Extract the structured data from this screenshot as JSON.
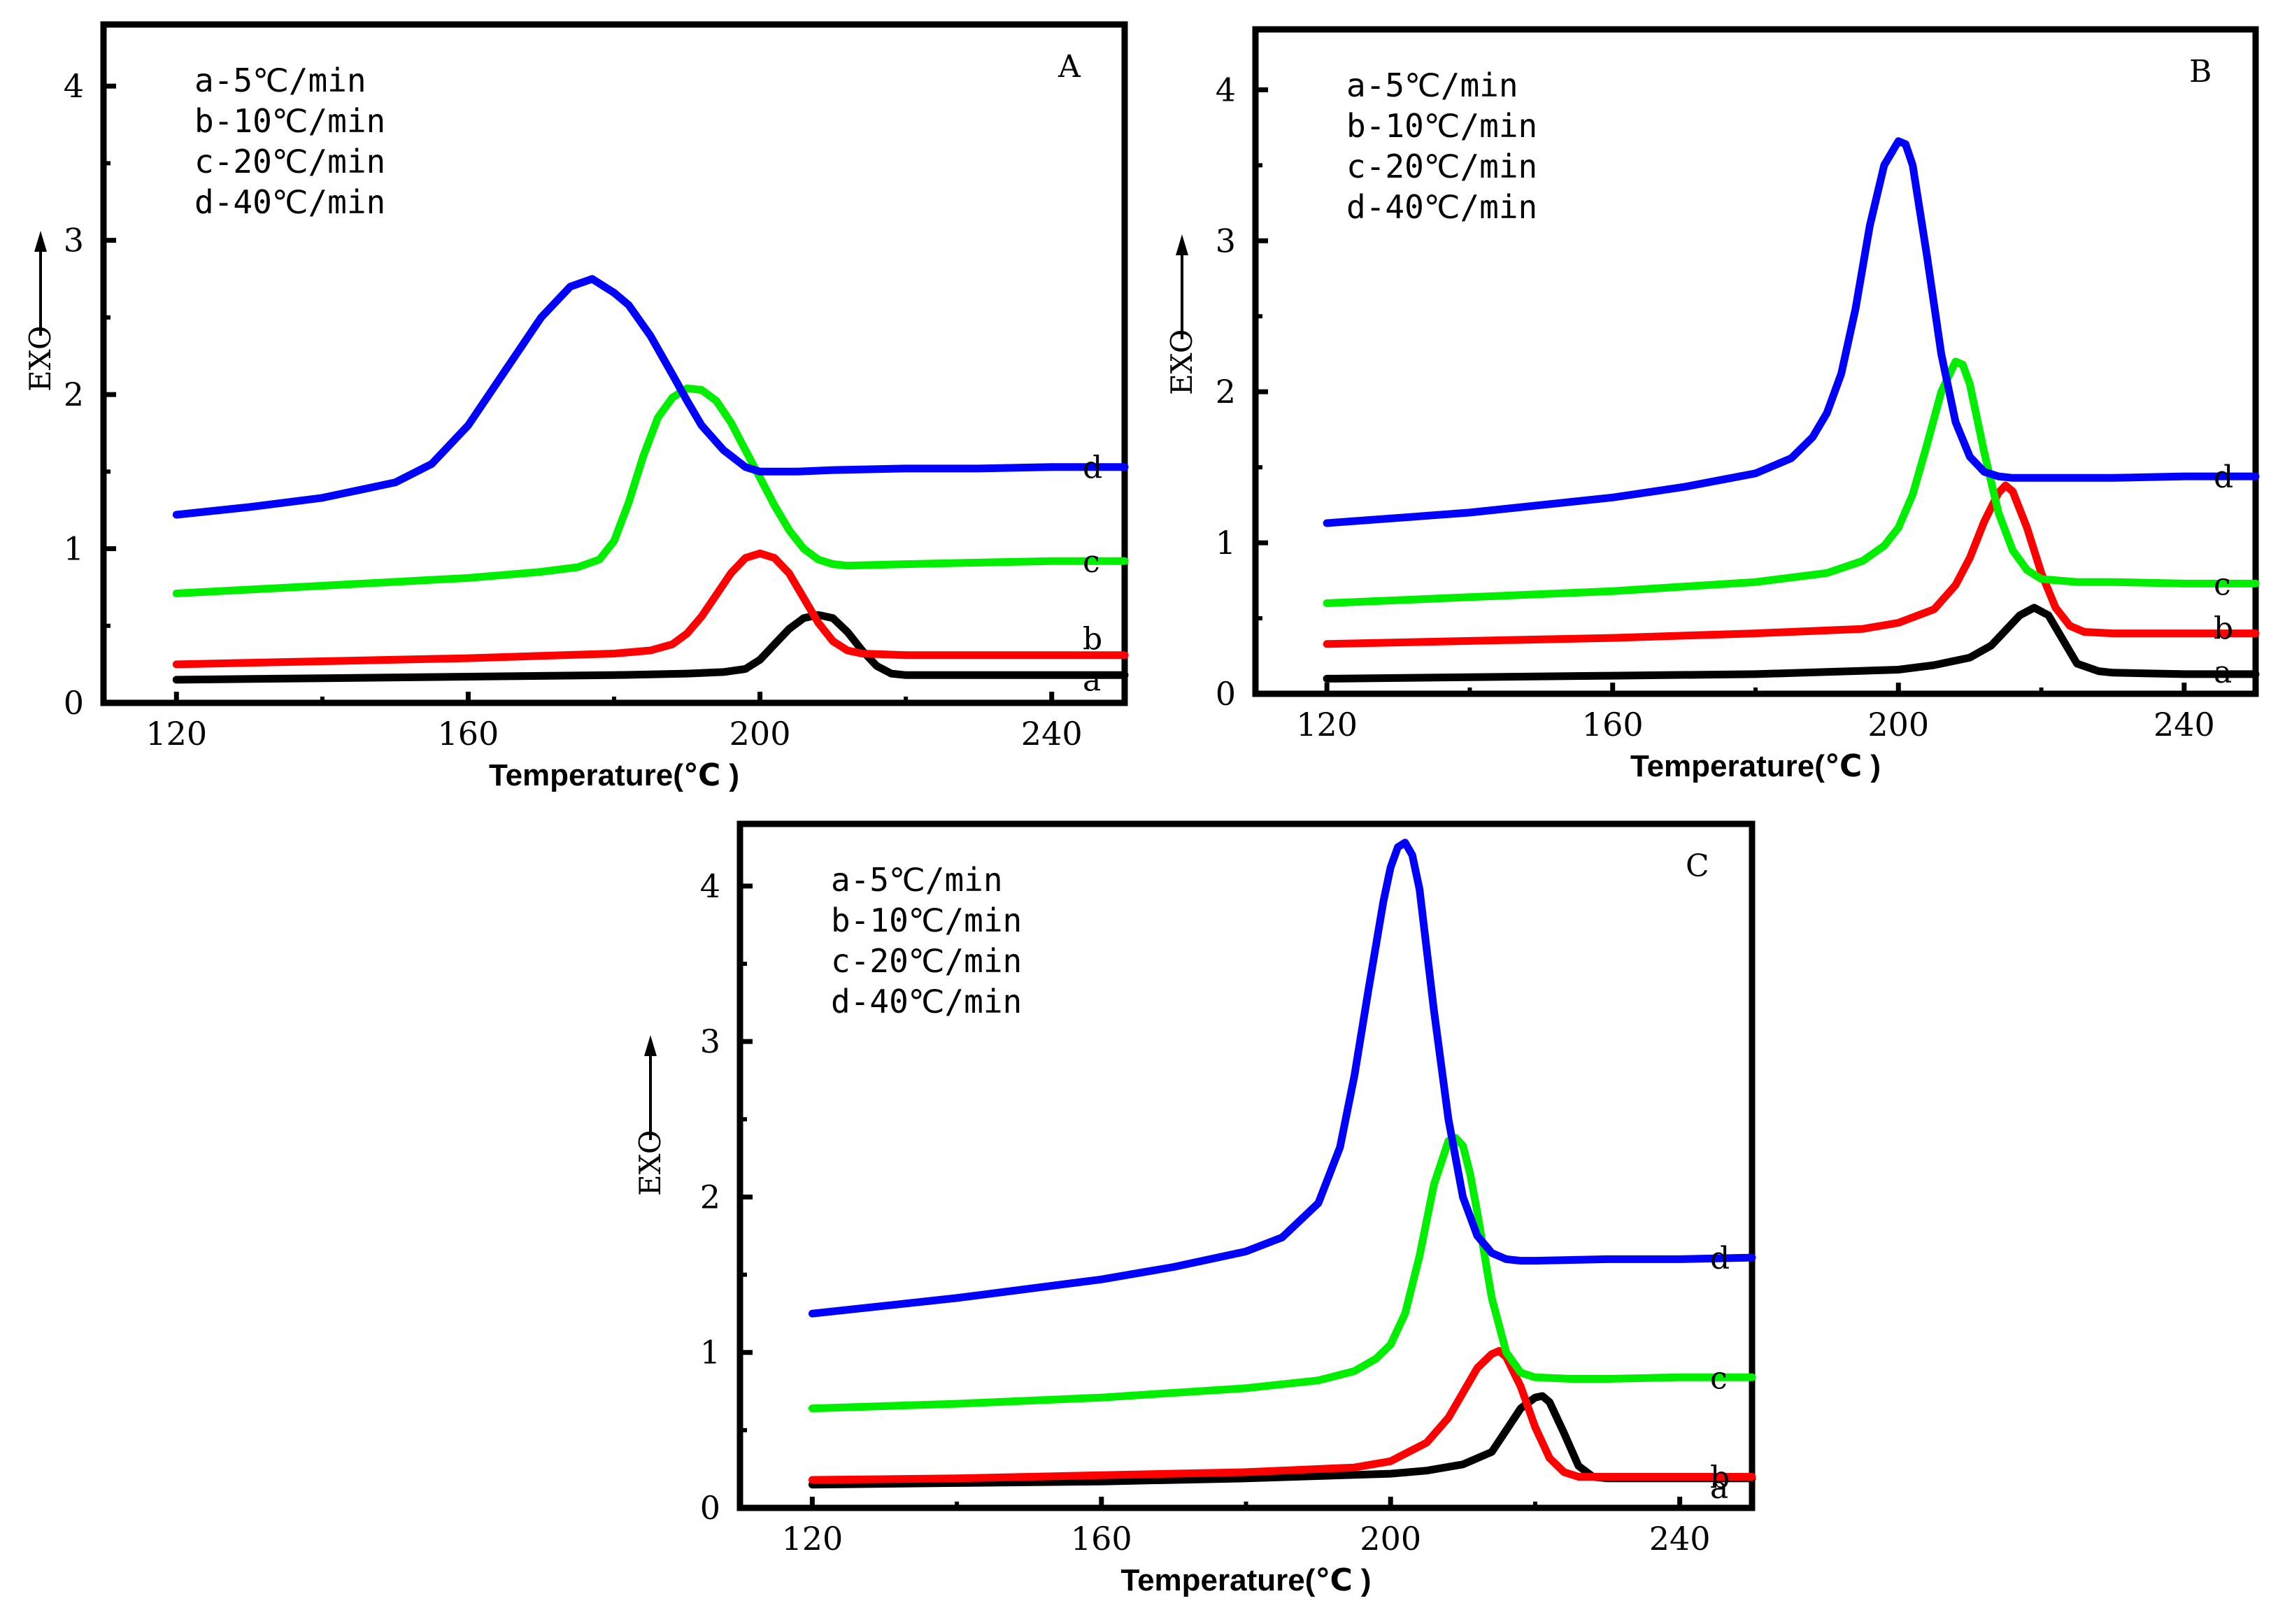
{
  "chart_data": [
    {
      "type": "line",
      "panel": "A",
      "title": "",
      "xlabel": "Temperature(℃ )",
      "ylabel": "EXO",
      "xlim": [
        110,
        250
      ],
      "ylim": [
        0,
        4.4
      ],
      "xticks": [
        120,
        160,
        200,
        240
      ],
      "yticks": [
        0,
        1,
        2,
        3,
        4
      ],
      "legend": [
        "a-5℃/min",
        "b-10℃/min",
        "c-20℃/min",
        "d-40℃/min"
      ],
      "legend_position": "top-left",
      "series": [
        {
          "name": "a",
          "color": "#000000",
          "x": [
            120,
            140,
            160,
            180,
            190,
            195,
            198,
            200,
            202,
            204,
            206,
            208,
            210,
            212,
            214,
            216,
            218,
            220,
            230,
            240,
            250
          ],
          "y": [
            0.15,
            0.16,
            0.17,
            0.18,
            0.19,
            0.2,
            0.22,
            0.28,
            0.38,
            0.48,
            0.55,
            0.57,
            0.55,
            0.46,
            0.34,
            0.24,
            0.19,
            0.18,
            0.18,
            0.18,
            0.18
          ]
        },
        {
          "name": "b",
          "color": "#ff0000",
          "x": [
            120,
            140,
            160,
            180,
            185,
            188,
            190,
            192,
            194,
            196,
            198,
            200,
            202,
            204,
            206,
            208,
            210,
            212,
            214,
            220,
            230,
            240,
            250
          ],
          "y": [
            0.25,
            0.27,
            0.29,
            0.32,
            0.34,
            0.38,
            0.45,
            0.56,
            0.7,
            0.84,
            0.94,
            0.97,
            0.94,
            0.84,
            0.68,
            0.52,
            0.4,
            0.34,
            0.32,
            0.31,
            0.31,
            0.31,
            0.31
          ]
        },
        {
          "name": "c",
          "color": "#00ee00",
          "x": [
            120,
            140,
            160,
            170,
            175,
            178,
            180,
            182,
            184,
            186,
            188,
            190,
            192,
            194,
            196,
            198,
            200,
            202,
            204,
            206,
            208,
            210,
            212,
            220,
            230,
            240,
            250
          ],
          "y": [
            0.71,
            0.76,
            0.81,
            0.85,
            0.88,
            0.93,
            1.05,
            1.3,
            1.6,
            1.85,
            1.98,
            2.04,
            2.03,
            1.96,
            1.82,
            1.64,
            1.46,
            1.28,
            1.12,
            1.0,
            0.93,
            0.9,
            0.89,
            0.9,
            0.91,
            0.92,
            0.92
          ]
        },
        {
          "name": "d",
          "color": "#0000ff",
          "x": [
            120,
            130,
            140,
            150,
            155,
            160,
            165,
            170,
            174,
            177,
            180,
            182,
            185,
            188,
            190,
            192,
            195,
            198,
            200,
            202,
            205,
            210,
            220,
            230,
            240,
            250
          ],
          "y": [
            1.22,
            1.27,
            1.33,
            1.43,
            1.55,
            1.8,
            2.15,
            2.5,
            2.7,
            2.75,
            2.66,
            2.58,
            2.38,
            2.13,
            1.96,
            1.8,
            1.64,
            1.53,
            1.5,
            1.5,
            1.5,
            1.51,
            1.52,
            1.52,
            1.53,
            1.53
          ]
        }
      ]
    },
    {
      "type": "line",
      "panel": "B",
      "title": "",
      "xlabel": "Temperature(℃ )",
      "ylabel": "EXO",
      "xlim": [
        110,
        250
      ],
      "ylim": [
        0,
        4.4
      ],
      "xticks": [
        120,
        160,
        200,
        240
      ],
      "yticks": [
        0,
        1,
        2,
        3,
        4
      ],
      "legend": [
        "a-5℃/min",
        "b-10℃/min",
        "c-20℃/min",
        "d-40℃/min"
      ],
      "legend_position": "top-left",
      "series": [
        {
          "name": "a",
          "color": "#000000",
          "x": [
            120,
            140,
            160,
            180,
            200,
            205,
            210,
            213,
            215,
            217,
            219,
            221,
            223,
            225,
            228,
            230,
            240,
            250
          ],
          "y": [
            0.1,
            0.11,
            0.12,
            0.13,
            0.16,
            0.19,
            0.24,
            0.32,
            0.42,
            0.52,
            0.57,
            0.52,
            0.36,
            0.2,
            0.15,
            0.14,
            0.13,
            0.13
          ]
        },
        {
          "name": "b",
          "color": "#ff0000",
          "x": [
            120,
            140,
            160,
            180,
            195,
            200,
            205,
            208,
            210,
            212,
            214,
            215,
            216,
            218,
            220,
            222,
            224,
            226,
            230,
            240,
            250
          ],
          "y": [
            0.33,
            0.35,
            0.37,
            0.4,
            0.43,
            0.47,
            0.56,
            0.72,
            0.9,
            1.14,
            1.33,
            1.38,
            1.34,
            1.1,
            0.8,
            0.57,
            0.45,
            0.41,
            0.4,
            0.4,
            0.4
          ]
        },
        {
          "name": "c",
          "color": "#00ee00",
          "x": [
            120,
            140,
            160,
            180,
            190,
            195,
            198,
            200,
            202,
            204,
            206,
            208,
            209,
            210,
            212,
            214,
            216,
            218,
            220,
            225,
            230,
            240,
            250
          ],
          "y": [
            0.6,
            0.64,
            0.68,
            0.74,
            0.8,
            0.88,
            0.98,
            1.1,
            1.32,
            1.65,
            2.0,
            2.2,
            2.18,
            2.05,
            1.6,
            1.2,
            0.95,
            0.82,
            0.76,
            0.74,
            0.74,
            0.73,
            0.73
          ]
        },
        {
          "name": "d",
          "color": "#0000ff",
          "x": [
            120,
            140,
            160,
            170,
            180,
            185,
            188,
            190,
            192,
            194,
            196,
            198,
            200,
            201,
            202,
            204,
            206,
            208,
            210,
            212,
            214,
            216,
            220,
            230,
            240,
            250
          ],
          "y": [
            1.13,
            1.2,
            1.3,
            1.37,
            1.46,
            1.56,
            1.7,
            1.86,
            2.12,
            2.55,
            3.1,
            3.5,
            3.66,
            3.64,
            3.5,
            2.9,
            2.25,
            1.8,
            1.57,
            1.47,
            1.44,
            1.43,
            1.43,
            1.43,
            1.44,
            1.44
          ]
        }
      ]
    },
    {
      "type": "line",
      "panel": "C",
      "title": "",
      "xlabel": "Temperature(℃ )",
      "ylabel": "EXO",
      "xlim": [
        110,
        250
      ],
      "ylim": [
        0,
        4.4
      ],
      "xticks": [
        120,
        160,
        200,
        240
      ],
      "yticks": [
        0,
        1,
        2,
        3,
        4
      ],
      "legend": [
        "a-5℃/min",
        "b-10℃/min",
        "c-20℃/min",
        "d-40℃/min"
      ],
      "legend_position": "top-left",
      "series": [
        {
          "name": "a",
          "color": "#000000",
          "x": [
            120,
            140,
            160,
            180,
            200,
            205,
            210,
            214,
            216,
            218,
            220,
            221,
            222,
            224,
            226,
            228,
            230,
            240,
            250
          ],
          "y": [
            0.15,
            0.16,
            0.17,
            0.19,
            0.22,
            0.24,
            0.28,
            0.36,
            0.5,
            0.64,
            0.71,
            0.72,
            0.68,
            0.48,
            0.27,
            0.2,
            0.19,
            0.19,
            0.19
          ]
        },
        {
          "name": "b",
          "color": "#ff0000",
          "x": [
            120,
            140,
            160,
            180,
            195,
            200,
            205,
            208,
            210,
            212,
            214,
            215,
            216,
            218,
            220,
            222,
            224,
            226,
            230,
            240,
            250
          ],
          "y": [
            0.18,
            0.19,
            0.21,
            0.23,
            0.26,
            0.3,
            0.42,
            0.58,
            0.74,
            0.9,
            0.99,
            1.01,
            0.97,
            0.78,
            0.52,
            0.32,
            0.23,
            0.2,
            0.2,
            0.2,
            0.2
          ]
        },
        {
          "name": "c",
          "color": "#00ee00",
          "x": [
            120,
            140,
            160,
            180,
            190,
            195,
            198,
            200,
            202,
            204,
            206,
            208,
            209,
            210,
            211,
            212,
            214,
            216,
            218,
            220,
            225,
            230,
            240,
            250
          ],
          "y": [
            0.64,
            0.67,
            0.71,
            0.77,
            0.82,
            0.88,
            0.96,
            1.05,
            1.25,
            1.62,
            2.08,
            2.36,
            2.38,
            2.33,
            2.15,
            1.9,
            1.35,
            1.0,
            0.87,
            0.84,
            0.83,
            0.83,
            0.84,
            0.84
          ]
        },
        {
          "name": "d",
          "color": "#0000ff",
          "x": [
            120,
            140,
            160,
            170,
            180,
            185,
            190,
            193,
            195,
            197,
            199,
            200,
            201,
            202,
            203,
            204,
            206,
            208,
            210,
            212,
            214,
            216,
            218,
            220,
            230,
            240,
            250
          ],
          "y": [
            1.25,
            1.35,
            1.47,
            1.55,
            1.65,
            1.74,
            1.96,
            2.32,
            2.78,
            3.35,
            3.9,
            4.12,
            4.25,
            4.28,
            4.2,
            3.98,
            3.2,
            2.5,
            2.0,
            1.75,
            1.64,
            1.6,
            1.59,
            1.59,
            1.6,
            1.6,
            1.61
          ]
        }
      ]
    }
  ]
}
